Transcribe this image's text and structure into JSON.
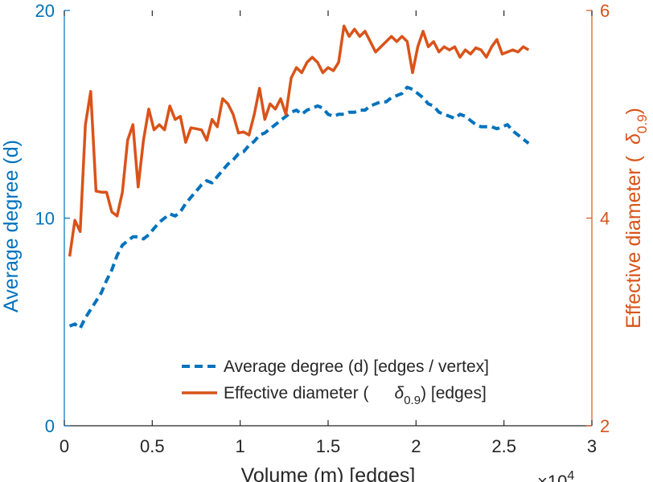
{
  "chart_data": {
    "type": "line",
    "x_axis": {
      "label": "Volume (m) [edges]",
      "range": [
        0,
        30000
      ],
      "ticks": [
        0,
        5000,
        10000,
        15000,
        20000,
        25000,
        30000
      ],
      "tick_labels": [
        "0",
        "0.5",
        "1",
        "1.5",
        "2",
        "2.5",
        "3"
      ],
      "exponent_label": "×10",
      "exponent_power": "4",
      "color": "#262626"
    },
    "y_left": {
      "label": "Average degree (d)",
      "range": [
        0,
        20
      ],
      "ticks": [
        0,
        10,
        20
      ],
      "tick_labels": [
        "0",
        "10",
        "20"
      ],
      "color": "#0072BD"
    },
    "y_right": {
      "label_main": "Effective diameter (",
      "label_symbol": "δ",
      "label_sub": "0.9",
      "label_tail": ")",
      "range": [
        2,
        6
      ],
      "ticks": [
        2,
        4,
        6
      ],
      "tick_labels": [
        "2",
        "4",
        "6"
      ],
      "color": "#D95319"
    },
    "grid": false,
    "legend": {
      "placement": "bottom-right",
      "entries": [
        {
          "text": "Average degree (d) [edges / vertex]"
        },
        {
          "text_main": "Effective diameter (",
          "symbol": "δ",
          "sub": "0.9",
          "tail": ") [edges]"
        }
      ]
    },
    "series": [
      {
        "axis": "left",
        "style": "dashed",
        "color": "#0072BD",
        "x": [
          300,
          600,
          900,
          1200,
          1500,
          1800,
          2100,
          2400,
          2700,
          3000,
          3300,
          3600,
          3900,
          4200,
          4500,
          4800,
          5100,
          5400,
          5700,
          6000,
          6300,
          6600,
          6900,
          7200,
          7500,
          7800,
          8100,
          8400,
          8700,
          9000,
          9300,
          9600,
          9900,
          10200,
          10500,
          10800,
          11100,
          11400,
          11700,
          12000,
          12300,
          12600,
          12900,
          13200,
          13500,
          13800,
          14100,
          14400,
          14700,
          15000,
          15300,
          15600,
          15900,
          16200,
          16500,
          16800,
          17100,
          17400,
          17700,
          18000,
          18300,
          18600,
          18900,
          19200,
          19500,
          19800,
          20100,
          20400,
          20700,
          21000,
          21300,
          21600,
          21900,
          22200,
          22500,
          22800,
          23100,
          23400,
          23700,
          24000,
          24300,
          24600,
          24900,
          25200,
          25500,
          25800,
          26100,
          26400
        ],
        "y": [
          4.8,
          4.9,
          4.7,
          5.2,
          5.6,
          6.0,
          6.4,
          7.0,
          7.5,
          8.2,
          8.7,
          8.9,
          9.1,
          9.1,
          9.0,
          9.2,
          9.5,
          9.8,
          10.0,
          10.2,
          10.1,
          10.3,
          10.7,
          11.0,
          11.3,
          11.6,
          11.8,
          11.7,
          12.0,
          12.3,
          12.6,
          12.8,
          13.1,
          13.2,
          13.5,
          13.7,
          14.0,
          14.1,
          14.3,
          14.5,
          14.7,
          14.9,
          15.1,
          15.2,
          15.0,
          15.2,
          15.3,
          15.4,
          15.3,
          15.0,
          14.9,
          15.0,
          15.0,
          15.1,
          15.1,
          15.2,
          15.2,
          15.4,
          15.5,
          15.6,
          15.6,
          15.8,
          15.9,
          16.0,
          16.3,
          16.2,
          16.0,
          15.8,
          15.5,
          15.4,
          15.1,
          15.0,
          14.9,
          14.8,
          15.0,
          14.9,
          14.7,
          14.5,
          14.4,
          14.4,
          14.4,
          14.3,
          14.4,
          14.5,
          14.2,
          14.0,
          13.8,
          13.6
        ]
      },
      {
        "axis": "right",
        "style": "solid",
        "color": "#D95319",
        "x": [
          300,
          600,
          900,
          1200,
          1500,
          1800,
          2100,
          2400,
          2700,
          3000,
          3300,
          3600,
          3900,
          4200,
          4500,
          4800,
          5100,
          5400,
          5700,
          6000,
          6300,
          6600,
          6900,
          7200,
          7500,
          7800,
          8100,
          8400,
          8700,
          9000,
          9300,
          9600,
          9900,
          10200,
          10500,
          10800,
          11100,
          11400,
          11700,
          12000,
          12300,
          12600,
          12900,
          13200,
          13500,
          13800,
          14100,
          14400,
          14700,
          15000,
          15300,
          15600,
          15900,
          16200,
          16500,
          16800,
          17100,
          17400,
          17700,
          18000,
          18300,
          18600,
          18900,
          19200,
          19500,
          19800,
          20100,
          20400,
          20700,
          21000,
          21300,
          21600,
          21900,
          22200,
          22500,
          22800,
          23100,
          23400,
          23700,
          24000,
          24300,
          24600,
          24900,
          25200,
          25500,
          25800,
          26100,
          26400
        ],
        "y": [
          3.63,
          3.98,
          3.87,
          4.9,
          5.22,
          4.26,
          4.25,
          4.25,
          4.06,
          4.02,
          4.25,
          4.75,
          4.9,
          4.3,
          4.75,
          5.05,
          4.85,
          4.9,
          4.85,
          5.08,
          4.95,
          4.98,
          4.73,
          4.87,
          4.86,
          4.85,
          4.75,
          4.95,
          4.88,
          5.15,
          5.1,
          5.0,
          4.82,
          4.83,
          4.8,
          5.0,
          5.25,
          4.95,
          5.1,
          5.05,
          5.15,
          5.0,
          5.35,
          5.45,
          5.4,
          5.5,
          5.55,
          5.5,
          5.4,
          5.45,
          5.42,
          5.5,
          5.85,
          5.75,
          5.82,
          5.75,
          5.8,
          5.7,
          5.6,
          5.65,
          5.7,
          5.75,
          5.7,
          5.75,
          5.7,
          5.4,
          5.65,
          5.8,
          5.65,
          5.7,
          5.6,
          5.65,
          5.62,
          5.65,
          5.55,
          5.62,
          5.58,
          5.64,
          5.62,
          5.55,
          5.65,
          5.72,
          5.58,
          5.6,
          5.62,
          5.6,
          5.65,
          5.62
        ]
      }
    ]
  }
}
